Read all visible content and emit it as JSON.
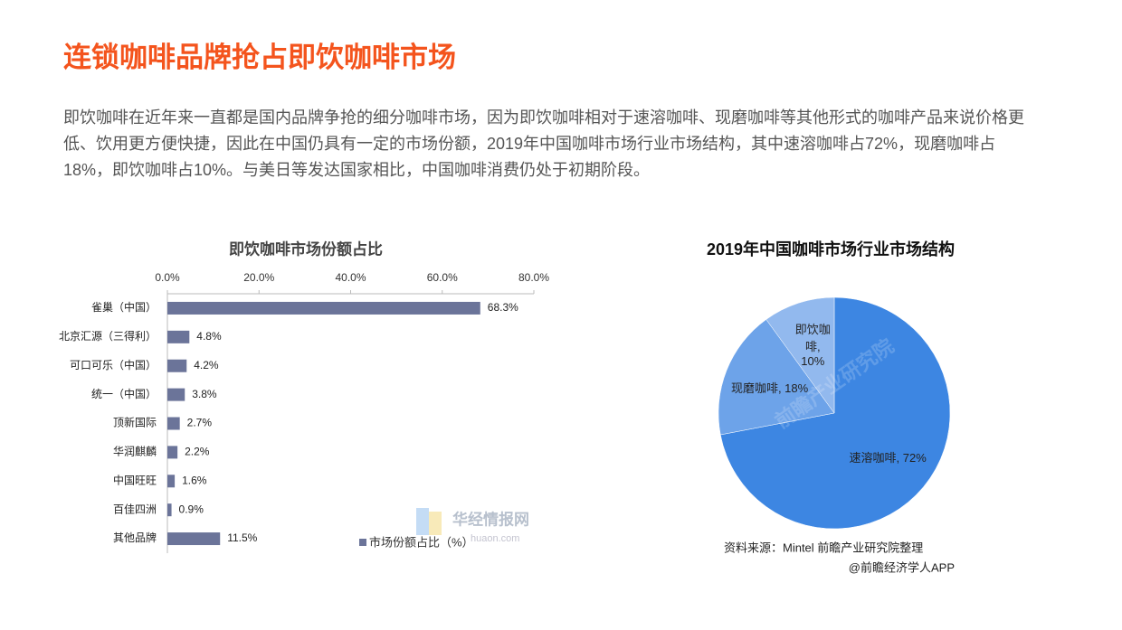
{
  "title": "连锁咖啡品牌抢占即饮咖啡市场",
  "paragraph": "即饮咖啡在近年来一直都是国内品牌争抢的细分咖啡市场，因为即饮咖啡相对于速溶咖啡、现磨咖啡等其他形式的咖啡产品来说价格更低、饮用更方便快捷，因此在中国仍具有一定的市场份额，2019年中国咖啡市场行业市场结构，其中速溶咖啡占72%，现磨咖啡占18%，即饮咖啡占10%。与美日等发达国家相比，中国咖啡消费仍处于初期阶段。",
  "chart_data": [
    {
      "type": "bar",
      "orientation": "horizontal",
      "title": "即饮咖啡市场份额占比",
      "categories": [
        "雀巢（中国）",
        "北京汇源（三得利）",
        "可口可乐（中国）",
        "统一（中国）",
        "顶新国际",
        "华润麒麟",
        "中国旺旺",
        "百佳四洲",
        "其他品牌"
      ],
      "series": [
        {
          "name": "市场份额占比（%）",
          "color": "#6b7499",
          "values": [
            68.3,
            4.8,
            4.2,
            3.8,
            2.7,
            2.2,
            1.6,
            0.9,
            11.5
          ],
          "value_labels": [
            "68.3%",
            "4.8%",
            "4.2%",
            "3.8%",
            "2.7%",
            "2.2%",
            "1.6%",
            "0.9%",
            "11.5%"
          ]
        }
      ],
      "xlim": [
        0,
        80
      ],
      "xticks": [
        {
          "value": 0,
          "label": "0.0%"
        },
        {
          "value": 20,
          "label": "20.0%"
        },
        {
          "value": 40,
          "label": "40.0%"
        },
        {
          "value": 60,
          "label": "60.0%"
        },
        {
          "value": 80,
          "label": "80.0%"
        }
      ],
      "legend": "bottom",
      "grid": false,
      "watermark": "华经情报网",
      "watermark_url": "huaon.com"
    },
    {
      "type": "pie",
      "title": "2019年中国咖啡市场行业市场结构",
      "categories": [
        "速溶咖啡",
        "现磨咖啡",
        "即饮咖啡"
      ],
      "values": [
        72,
        18,
        10
      ],
      "value_labels": [
        "速溶咖啡, 72%",
        "现磨咖啡, 18%",
        "即饮咖啡, 10%"
      ],
      "colors": [
        "#3d86e2",
        "#6da3e9",
        "#92b9ee"
      ],
      "watermark": "前瞻产业研究院",
      "source": "资料来源：Mintel 前瞻产业研究院整理",
      "credit": "@前瞻经济学人APP"
    }
  ]
}
